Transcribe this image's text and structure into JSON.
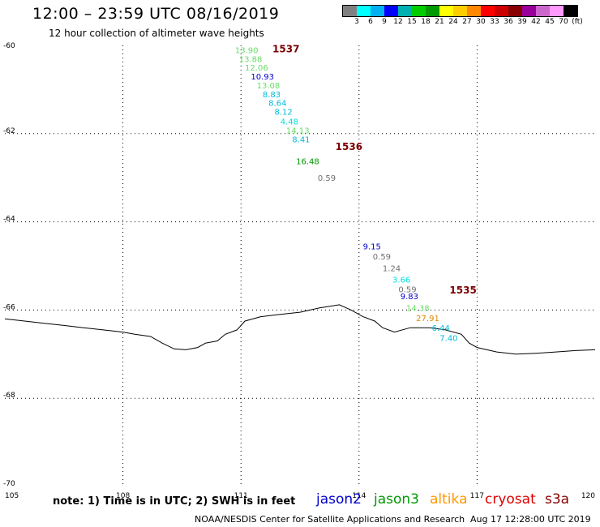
{
  "title": "12:00 – 23:59 UTC 08/16/2019",
  "subtitle": "12 hour collection of altimeter wave heights",
  "scale": {
    "colors": [
      "#808080",
      "#00ffff",
      "#00b0f0",
      "#0000ff",
      "#00b0b0",
      "#00cc00",
      "#009900",
      "#ffff00",
      "#ffcc00",
      "#ff8800",
      "#ff0000",
      "#cc0000",
      "#880000",
      "#990099",
      "#cc66cc",
      "#ff99ff",
      "#000000"
    ],
    "labels": [
      "3",
      "6",
      "9",
      "12",
      "15",
      "18",
      "21",
      "24",
      "27",
      "30",
      "33",
      "36",
      "39",
      "42",
      "45",
      "70",
      "(ft)"
    ]
  },
  "map": {
    "lon_range": [
      105,
      120
    ],
    "lat_range": [
      -70,
      -60
    ],
    "lon_ticks": [
      "105",
      "108",
      "111",
      "114",
      "117",
      "120"
    ],
    "lat_ticks": [
      "-60",
      "-62",
      "-64",
      "-66",
      "-68",
      "-70"
    ],
    "coastline": [
      [
        105.0,
        -66.2
      ],
      [
        105.5,
        -66.25
      ],
      [
        106,
        -66.3
      ],
      [
        106.5,
        -66.35
      ],
      [
        107,
        -66.4
      ],
      [
        107.5,
        -66.45
      ],
      [
        108,
        -66.5
      ],
      [
        108.3,
        -66.55
      ],
      [
        108.7,
        -66.6
      ],
      [
        109,
        -66.75
      ],
      [
        109.3,
        -66.88
      ],
      [
        109.6,
        -66.9
      ],
      [
        109.9,
        -66.85
      ],
      [
        110.1,
        -66.75
      ],
      [
        110.4,
        -66.7
      ],
      [
        110.6,
        -66.55
      ],
      [
        110.9,
        -66.45
      ],
      [
        111.1,
        -66.25
      ],
      [
        111.5,
        -66.15
      ],
      [
        112,
        -66.1
      ],
      [
        112.5,
        -66.05
      ],
      [
        113,
        -65.95
      ],
      [
        113.5,
        -65.88
      ],
      [
        113.8,
        -66.0
      ],
      [
        114.1,
        -66.15
      ],
      [
        114.4,
        -66.25
      ],
      [
        114.6,
        -66.4
      ],
      [
        114.9,
        -66.5
      ],
      [
        115.3,
        -66.4
      ],
      [
        115.8,
        -66.4
      ],
      [
        116.2,
        -66.45
      ],
      [
        116.6,
        -66.55
      ],
      [
        116.8,
        -66.75
      ],
      [
        117.0,
        -66.85
      ],
      [
        117.5,
        -66.95
      ],
      [
        118,
        -67.0
      ],
      [
        118.5,
        -66.98
      ],
      [
        119,
        -66.95
      ],
      [
        119.5,
        -66.92
      ],
      [
        120,
        -66.9
      ]
    ]
  },
  "passes": [
    {
      "id": "1537",
      "label_lon": 111.8,
      "label_lat": -60.08
    },
    {
      "id": "1536",
      "label_lon": 113.4,
      "label_lat": -62.3
    },
    {
      "id": "1535",
      "label_lon": 116.3,
      "label_lat": -65.55
    }
  ],
  "observations": [
    {
      "lon": 110.85,
      "lat": -60.1,
      "value": "13.90",
      "color": "#66dd66"
    },
    {
      "lon": 110.95,
      "lat": -60.3,
      "value": "13.88",
      "color": "#66dd66"
    },
    {
      "lon": 111.1,
      "lat": -60.5,
      "value": "12.06",
      "color": "#66dd66"
    },
    {
      "lon": 111.25,
      "lat": -60.7,
      "value": "10.93",
      "color": "#0000cc"
    },
    {
      "lon": 111.4,
      "lat": -60.9,
      "value": "13.08",
      "color": "#66dd66"
    },
    {
      "lon": 111.55,
      "lat": -61.1,
      "value": "8.83",
      "color": "#00bbdd"
    },
    {
      "lon": 111.7,
      "lat": -61.3,
      "value": "8.64",
      "color": "#00bbdd"
    },
    {
      "lon": 111.85,
      "lat": -61.5,
      "value": "8.12",
      "color": "#00bbdd"
    },
    {
      "lon": 112.0,
      "lat": -61.72,
      "value": "4.48",
      "color": "#00dddd"
    },
    {
      "lon": 112.15,
      "lat": -61.92,
      "value": "14.13",
      "color": "#66dd66"
    },
    {
      "lon": 112.3,
      "lat": -62.12,
      "value": "8.41",
      "color": "#00bbdd"
    },
    {
      "lon": 112.4,
      "lat": -62.62,
      "value": "16.48",
      "color": "#009900"
    },
    {
      "lon": 112.95,
      "lat": -63.0,
      "value": "0.59",
      "color": "#707070"
    },
    {
      "lon": 114.1,
      "lat": -64.55,
      "value": "9.15",
      "color": "#0000cc"
    },
    {
      "lon": 114.35,
      "lat": -64.78,
      "value": "0.59",
      "color": "#707070"
    },
    {
      "lon": 114.6,
      "lat": -65.05,
      "value": "1.24",
      "color": "#707070"
    },
    {
      "lon": 114.85,
      "lat": -65.3,
      "value": "3.66",
      "color": "#00dddd"
    },
    {
      "lon": 115.0,
      "lat": -65.52,
      "value": "0.59",
      "color": "#707070"
    },
    {
      "lon": 115.05,
      "lat": -65.68,
      "value": "9.83",
      "color": "#0000cc"
    },
    {
      "lon": 115.2,
      "lat": -65.95,
      "value": "14.38",
      "color": "#66dd66"
    },
    {
      "lon": 115.45,
      "lat": -66.18,
      "value": "27.91",
      "color": "#dd8800"
    },
    {
      "lon": 115.85,
      "lat": -66.4,
      "value": "6.44",
      "color": "#00bbdd"
    },
    {
      "lon": 116.05,
      "lat": -66.63,
      "value": "7.40",
      "color": "#00bbdd"
    }
  ],
  "note": "note:  1) Time is in UTC;  2) SWH is in feet",
  "satellites": [
    {
      "name": "jason2",
      "color": "#0000cc"
    },
    {
      "name": "jason3",
      "color": "#009900"
    },
    {
      "name": "altika",
      "color": "#ff9900"
    },
    {
      "name": "cryosat",
      "color": "#dd0000"
    },
    {
      "name": "s3a",
      "color": "#880000"
    }
  ],
  "credit": "NOAA/NESDIS Center for Satellite Applications and Research",
  "issued": "Aug 17 12:28:00 UTC 2019"
}
